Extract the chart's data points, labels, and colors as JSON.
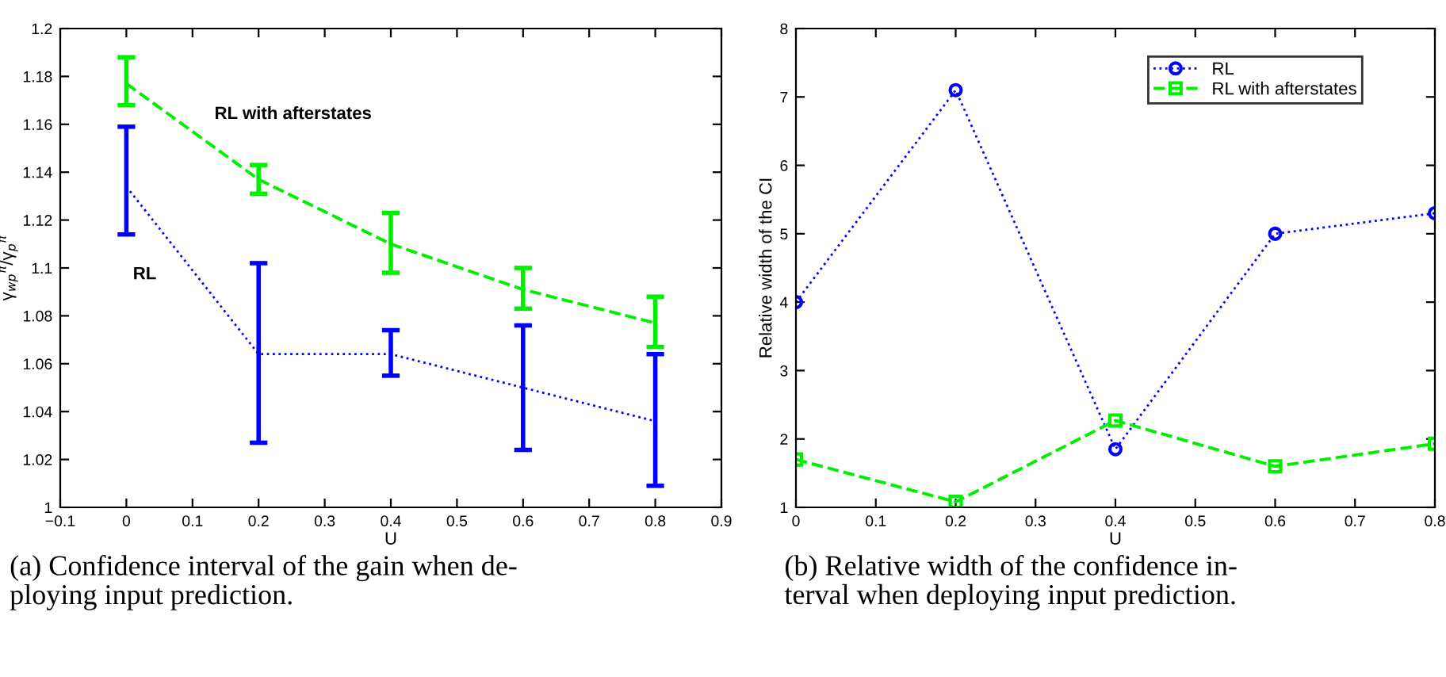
{
  "chart_data": [
    {
      "type": "line",
      "xlabel": "U",
      "ylabel": "γ$_{wp}$$^{π}$/γ$_{p}$$^{π}$",
      "x": [
        0,
        0.2,
        0.4,
        0.6,
        0.8
      ],
      "series": [
        {
          "name": "RL",
          "color": "#0000ff",
          "line_style": "dotted",
          "values": [
            1.134,
            1.064,
            1.064,
            1.05,
            1.036
          ],
          "errors": [
            [
              1.114,
              1.159
            ],
            [
              1.027,
              1.102
            ],
            [
              1.055,
              1.074
            ],
            [
              1.024,
              1.076
            ],
            [
              1.009,
              1.064
            ]
          ]
        },
        {
          "name": "RL with afterstates",
          "color": "#00ee00",
          "line_style": "dashed",
          "values": [
            1.177,
            1.137,
            1.11,
            1.091,
            1.077
          ],
          "errors": [
            [
              1.168,
              1.188
            ],
            [
              1.131,
              1.143
            ],
            [
              1.098,
              1.123
            ],
            [
              1.083,
              1.1
            ],
            [
              1.067,
              1.088
            ]
          ]
        }
      ],
      "xlim": [
        -0.1,
        0.9
      ],
      "xticks": [
        {
          "value": -0.1,
          "label": "−0.1"
        },
        0,
        0.1,
        0.2,
        0.3,
        0.4,
        0.5,
        0.6,
        0.7,
        0.8,
        0.9
      ],
      "ylim": [
        1,
        1.2
      ],
      "yticks": [
        1,
        1.02,
        1.04,
        1.06,
        1.08,
        1.1,
        1.12,
        1.14,
        1.16,
        1.18,
        1.2
      ],
      "grid": false,
      "legend": false,
      "annotations": [
        "(a) Confidence interval of the gain when de-\nploying input prediction."
      ]
    },
    {
      "type": "line",
      "xlabel": "U",
      "ylabel": "Relative width of the CI",
      "x": [
        0,
        0.2,
        0.4,
        0.6,
        0.8
      ],
      "series": [
        {
          "name": "RL",
          "color": "#0000ff",
          "line_style": "dotted",
          "marker": "circle",
          "values": [
            4.0,
            7.1,
            1.85,
            5.0,
            5.3
          ]
        },
        {
          "name": "RL with afterstates",
          "color": "#00ee00",
          "line_style": "dashed",
          "marker": "square",
          "values": [
            1.7,
            1.08,
            2.27,
            1.6,
            1.93
          ]
        }
      ],
      "xlim": [
        0,
        0.8
      ],
      "xticks": [
        0,
        0.1,
        0.2,
        0.3,
        0.4,
        0.5,
        0.6,
        0.7,
        0.8
      ],
      "ylim": [
        1,
        8
      ],
      "yticks": [
        1,
        2,
        3,
        4,
        5,
        6,
        7,
        8
      ],
      "grid": false,
      "legend": "top right",
      "annotations": [
        "(b) Relative width of the confidence in-\nterval when deploying input prediction."
      ]
    }
  ]
}
